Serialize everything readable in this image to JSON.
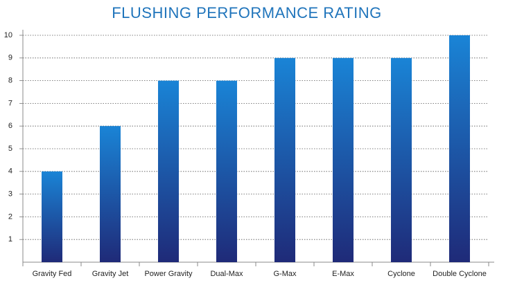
{
  "chart_data": {
    "type": "bar",
    "title": "FLUSHING PERFORMANCE RATING",
    "categories": [
      "Gravity Fed",
      "Gravity Jet",
      "Power Gravity",
      "Dual-Max",
      "G-Max",
      "E-Max",
      "Cyclone",
      "Double Cyclone"
    ],
    "values": [
      4,
      6,
      8,
      8,
      9,
      9,
      9,
      10
    ],
    "color": [
      "#1a84d6",
      "#1f2a78"
    ],
    "ylim": [
      0,
      10
    ],
    "yticks": [
      1,
      2,
      3,
      4,
      5,
      6,
      7,
      8,
      9,
      10
    ],
    "grid": true
  }
}
